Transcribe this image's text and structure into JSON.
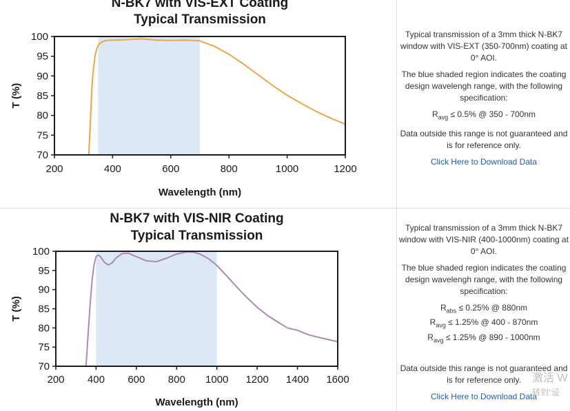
{
  "chart_data": [
    {
      "type": "line",
      "title": "N-BK7 with VIS-EXT Coating",
      "subtitle": "Typical Transmission",
      "xlabel": "Wavelength (nm)",
      "ylabel": "T (%)",
      "xlim": [
        200,
        1200
      ],
      "ylim": [
        70,
        100
      ],
      "xticks": [
        200,
        400,
        600,
        800,
        1000,
        1200
      ],
      "yticks": [
        70,
        75,
        80,
        85,
        90,
        95,
        100
      ],
      "grid": false,
      "shaded_region": [
        350,
        700
      ],
      "series": [
        {
          "name": "N-BK7 with VIS-EXT Coating",
          "color": "#f0a44a",
          "x": [
            318,
            322,
            326,
            330,
            335,
            340,
            345,
            350,
            360,
            370,
            380,
            400,
            450,
            500,
            550,
            600,
            650,
            700,
            750,
            800,
            850,
            900,
            950,
            1000,
            1050,
            1100,
            1150,
            1200
          ],
          "y": [
            70,
            76,
            83,
            88.5,
            92.5,
            95.2,
            96.8,
            97.7,
            98.5,
            98.8,
            99.0,
            99.1,
            99.2,
            99.4,
            99.1,
            99.0,
            99.1,
            98.9,
            97.5,
            95.5,
            93.0,
            90.3,
            87.6,
            85.1,
            83.0,
            81.0,
            79.3,
            77.8
          ]
        }
      ],
      "description": [
        "Typical transmission of a 3mm thick N-BK7 window with VIS-EXT (350-700nm) coating at 0° AOI.",
        "The blue shaded region indicates the coating design wavelengh range, with the following specification:",
        "Data outside this range is not guaranteed and is for reference only."
      ],
      "specs": [
        {
          "sym": "R",
          "sub": "avg",
          "text": "≤ 0.5% @ 350 - 700nm"
        }
      ],
      "download_label": "Click Here to Download Data"
    },
    {
      "type": "line",
      "title": "N-BK7 with VIS-NIR Coating",
      "subtitle": "Typical Transmission",
      "xlabel": "Wavelength (nm)",
      "ylabel": "T (%)",
      "xlim": [
        200,
        1600
      ],
      "ylim": [
        70,
        100
      ],
      "xticks": [
        200,
        400,
        600,
        800,
        1000,
        1200,
        1400,
        1600
      ],
      "yticks": [
        70,
        75,
        80,
        85,
        90,
        95,
        100
      ],
      "grid": false,
      "shaded_region": [
        400,
        1000
      ],
      "series": [
        {
          "name": "N-BK7 with VIS-NIR Coating",
          "color": "#ab89b0",
          "x": [
            350,
            360,
            370,
            380,
            390,
            400,
            410,
            420,
            440,
            460,
            480,
            500,
            530,
            560,
            600,
            650,
            700,
            750,
            800,
            850,
            880,
            920,
            960,
            1000,
            1050,
            1100,
            1150,
            1200,
            1250,
            1300,
            1350,
            1400,
            1450,
            1500,
            1550,
            1600
          ],
          "y": [
            70,
            78,
            86,
            92.5,
            96.5,
            98.6,
            99.0,
            98.7,
            97.2,
            96.4,
            97.0,
            98.3,
            99.4,
            99.5,
            98.6,
            97.5,
            97.3,
            98.2,
            99.3,
            99.8,
            99.8,
            99.2,
            98.0,
            96.3,
            93.5,
            90.6,
            87.9,
            85.4,
            83.3,
            81.6,
            80.0,
            79.4,
            78.3,
            77.6,
            77.0,
            76.4
          ]
        }
      ],
      "description": [
        "Typical transmission of a 3mm thick N-BK7 window with VIS-NIR (400-1000nm) coating at 0° AOI.",
        "The blue shaded region indicates the coating design wavelengh range, with the following specification:",
        "Data outside this range is not guaranteed and is for reference only."
      ],
      "specs": [
        {
          "sym": "R",
          "sub": "abs",
          "text": "≤ 0.25% @ 880nm"
        },
        {
          "sym": "R",
          "sub": "avg",
          "text": "≤ 1.25% @ 400 - 870nm"
        },
        {
          "sym": "R",
          "sub": "avg",
          "text": "≤ 1.25% @ 890 - 1000nm"
        }
      ],
      "download_label": "Click Here to Download Data"
    }
  ],
  "watermark": {
    "line1": "激活 W",
    "line2": "转到“设"
  },
  "colors": {
    "shade": "#dce9f4",
    "axis": "#1a1a1a",
    "link": "#1f5fa8"
  }
}
